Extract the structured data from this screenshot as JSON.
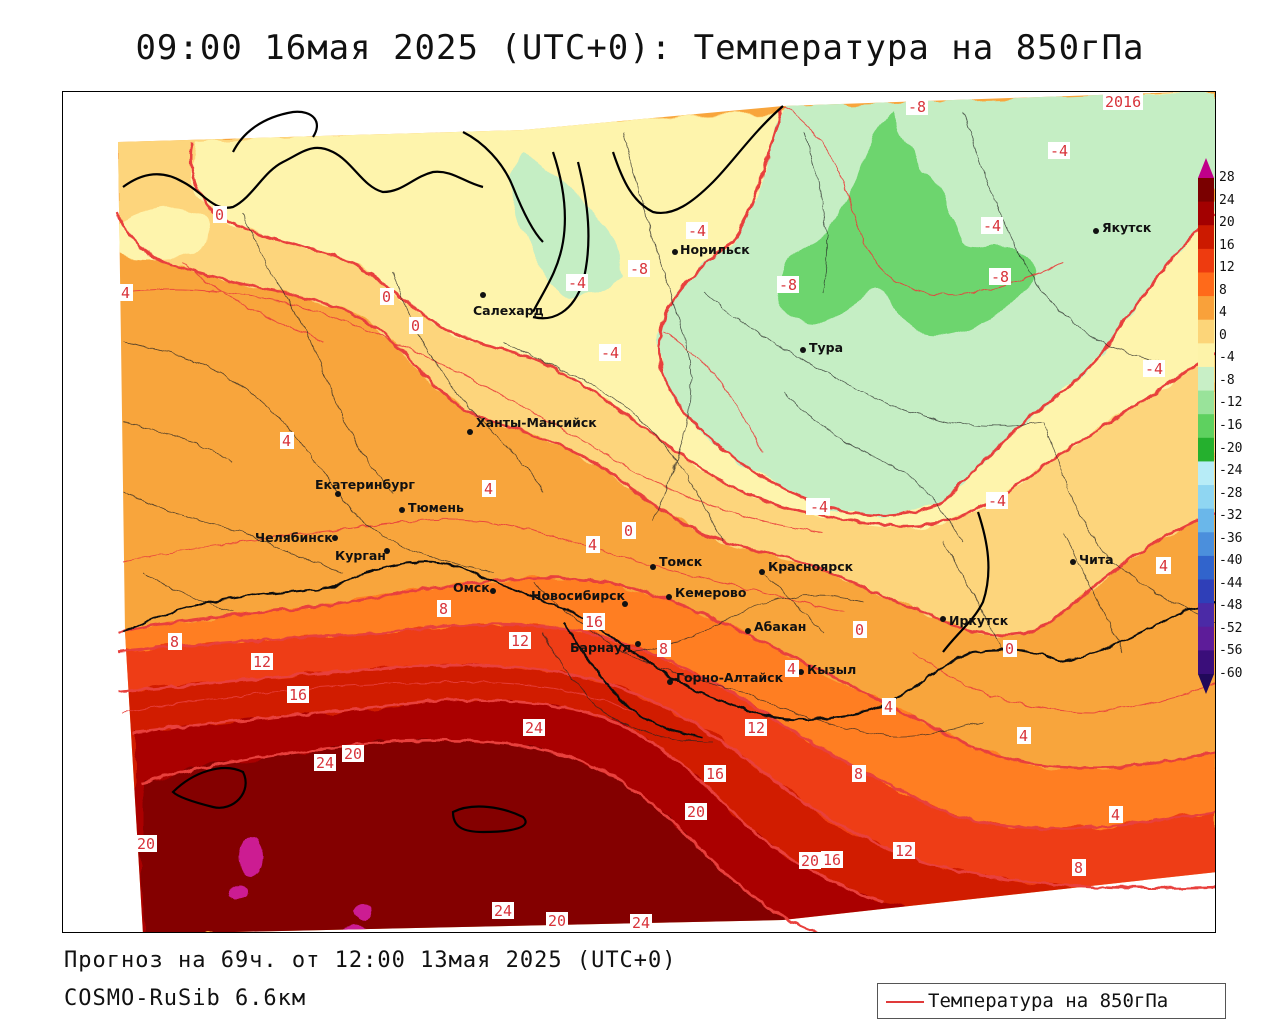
{
  "title": "09:00 16мая 2025 (UTC+0): Температура на 850гПа",
  "footer": {
    "forecast": "Прогноз на 69ч. от 12:00 13мая 2025 (UTC+0)",
    "model": "COSMO-RuSib 6.6км"
  },
  "legend": {
    "line_label": "Температура на 850гПа",
    "line_color": "#e03a3a"
  },
  "colorbar": {
    "ticks": [
      "28",
      "24",
      "20",
      "16",
      "12",
      "8",
      "4",
      "0",
      "-4",
      "-8",
      "-12",
      "-16",
      "-20",
      "-24",
      "-28",
      "-32",
      "-36",
      "-40",
      "-44",
      "-48",
      "-52",
      "-56",
      "-60"
    ],
    "colors": [
      "#c0008a",
      "#7a0000",
      "#a30000",
      "#cc1a00",
      "#ee3b0f",
      "#ff6a1a",
      "#f9a13a",
      "#fcd579",
      "#fdf3a9",
      "#c8efc6",
      "#99e39a",
      "#5ed15f",
      "#25b02e",
      "#b7ecf7",
      "#8fd6f2",
      "#6ab7ea",
      "#4b8fdc",
      "#3164cc",
      "#2f3fb8",
      "#4b2aa6",
      "#5d1c99",
      "#3a0e7a",
      "#21095a"
    ]
  },
  "cities": [
    {
      "name": "Якутск"
    },
    {
      "name": "Норильск"
    },
    {
      "name": "Салехард"
    },
    {
      "name": "Тура"
    },
    {
      "name": "Ханты-Мансийск"
    },
    {
      "name": "Екатеринбург"
    },
    {
      "name": "Тюмень"
    },
    {
      "name": "Челябинск"
    },
    {
      "name": "Курган"
    },
    {
      "name": "Омск"
    },
    {
      "name": "Новосибирск"
    },
    {
      "name": "Томск"
    },
    {
      "name": "Красноярск"
    },
    {
      "name": "Кемерово"
    },
    {
      "name": "Барнаул"
    },
    {
      "name": "Абакан"
    },
    {
      "name": "Горно-Алтайск"
    },
    {
      "name": "Кызыл"
    },
    {
      "name": "Иркутск"
    },
    {
      "name": "Чита"
    }
  ],
  "isolines": [
    "-8",
    "-4",
    "-4",
    "-4",
    "-4",
    "-8",
    "-8",
    "-8",
    "-4",
    "-4",
    "-4",
    "-4",
    "-4",
    "-4",
    "-4",
    "0",
    "0",
    "0",
    "0",
    "4",
    "4",
    "4",
    "4",
    "4",
    "4",
    "4",
    "4",
    "4",
    "4",
    "4",
    "8",
    "8",
    "8",
    "8",
    "8",
    "8",
    "12",
    "12",
    "12",
    "12",
    "16",
    "16",
    "16",
    "16",
    "20",
    "20",
    "20",
    "20",
    "20",
    "24",
    "24",
    "24",
    "24",
    "24",
    "0",
    "2016",
    "0"
  ]
}
